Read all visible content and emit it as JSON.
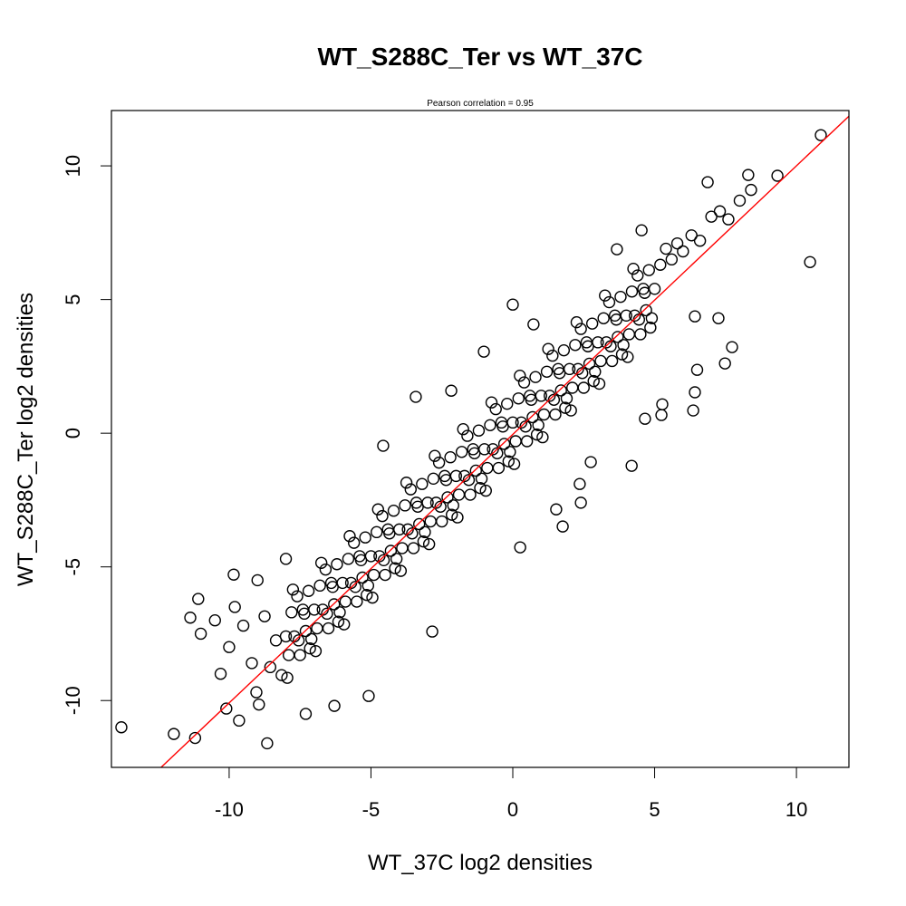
{
  "chart_data": {
    "type": "scatter",
    "title": "WT_S288C_Ter vs WT_37C",
    "subtitle": "Pearson correlation =  0.95",
    "xlabel": "WT_37C log2 densities",
    "ylabel": "WT_S288C_Ter log2 densities",
    "xlim": [
      -14.15,
      11.85
    ],
    "ylim": [
      -12.5,
      12.07
    ],
    "xticks": [
      -10,
      -5,
      0,
      5,
      10
    ],
    "yticks": [
      -10,
      -5,
      0,
      5,
      10
    ],
    "xtick_labels": [
      "-10",
      "-5",
      "0",
      "5",
      "10"
    ],
    "ytick_labels": [
      "-10",
      "-5",
      "0",
      "5",
      "10"
    ],
    "grid": false,
    "marker_color": "#000000",
    "fit_line": {
      "color": "#ff0000",
      "from": [
        -12.4,
        -12.5
      ],
      "to": [
        11.85,
        11.86
      ]
    },
    "points": [
      [
        -8,
        -7.6
      ],
      [
        -7.9,
        -8.3
      ],
      [
        -7.8,
        -6.7
      ],
      [
        -7.7,
        -7.6
      ],
      [
        -7.6,
        -6.1
      ],
      [
        -7.5,
        -8.3
      ],
      [
        -7.4,
        -6.6
      ],
      [
        -7.3,
        -7.4
      ],
      [
        -7.2,
        -5.9
      ],
      [
        -7.1,
        -7.7
      ],
      [
        -7,
        -6.6
      ],
      [
        -6.9,
        -7.3
      ],
      [
        -6.8,
        -5.7
      ],
      [
        -6.7,
        -6.6
      ],
      [
        -6.6,
        -5.1
      ],
      [
        -6.5,
        -7.3
      ],
      [
        -6.4,
        -5.6
      ],
      [
        -6.3,
        -6.4
      ],
      [
        -6.2,
        -4.9
      ],
      [
        -6.1,
        -6.7
      ],
      [
        -6,
        -5.6
      ],
      [
        -5.9,
        -6.3
      ],
      [
        -5.8,
        -4.7
      ],
      [
        -5.7,
        -5.6
      ],
      [
        -5.6,
        -4.1
      ],
      [
        -5.5,
        -6.3
      ],
      [
        -5.4,
        -4.6
      ],
      [
        -5.3,
        -5.4
      ],
      [
        -5.2,
        -3.9
      ],
      [
        -5.1,
        -5.7
      ],
      [
        -5,
        -4.6
      ],
      [
        -4.9,
        -5.3
      ],
      [
        -4.8,
        -3.7
      ],
      [
        -4.7,
        -4.6
      ],
      [
        -4.6,
        -3.1
      ],
      [
        -4.5,
        -5.3
      ],
      [
        -4.4,
        -3.6
      ],
      [
        -4.3,
        -4.4
      ],
      [
        -4.2,
        -2.9
      ],
      [
        -4.1,
        -4.7
      ],
      [
        -4,
        -3.6
      ],
      [
        -3.9,
        -4.3
      ],
      [
        -3.8,
        -2.7
      ],
      [
        -3.7,
        -3.6
      ],
      [
        -3.6,
        -2.1
      ],
      [
        -3.5,
        -4.3
      ],
      [
        -3.4,
        -2.6
      ],
      [
        -3.3,
        -3.4
      ],
      [
        -3.2,
        -1.9
      ],
      [
        -3.1,
        -3.7
      ],
      [
        -3,
        -2.6
      ],
      [
        -2.9,
        -3.3
      ],
      [
        -2.8,
        -1.7
      ],
      [
        -2.7,
        -2.6
      ],
      [
        -2.6,
        -1.1
      ],
      [
        -2.5,
        -3.3
      ],
      [
        -2.4,
        -1.6
      ],
      [
        -2.3,
        -2.4
      ],
      [
        -2.2,
        -0.9
      ],
      [
        -2.1,
        -2.7
      ],
      [
        -2,
        -1.6
      ],
      [
        -1.9,
        -2.3
      ],
      [
        -1.8,
        -0.7
      ],
      [
        -1.7,
        -1.6
      ],
      [
        -1.6,
        -0.1
      ],
      [
        -1.5,
        -2.3
      ],
      [
        -1.4,
        -0.6
      ],
      [
        -1.3,
        -1.4
      ],
      [
        -1.2,
        0.1
      ],
      [
        -1.1,
        -1.7
      ],
      [
        -1,
        -0.6
      ],
      [
        -0.9,
        -1.3
      ],
      [
        -0.8,
        0.3
      ],
      [
        -0.7,
        -0.6
      ],
      [
        -0.6,
        0.9
      ],
      [
        -0.5,
        -1.3
      ],
      [
        -0.4,
        0.4
      ],
      [
        -0.3,
        -0.4
      ],
      [
        -0.2,
        1.1
      ],
      [
        -0.1,
        -0.7
      ],
      [
        0,
        0.4
      ],
      [
        0.1,
        -0.3
      ],
      [
        0.2,
        1.3
      ],
      [
        0.3,
        0.4
      ],
      [
        0.4,
        1.9
      ],
      [
        0.5,
        -0.3
      ],
      [
        0.6,
        1.4
      ],
      [
        0.7,
        0.6
      ],
      [
        0.8,
        2.1
      ],
      [
        0.9,
        0.3
      ],
      [
        1,
        1.4
      ],
      [
        1.1,
        0.7
      ],
      [
        1.2,
        2.3
      ],
      [
        1.3,
        1.4
      ],
      [
        1.4,
        2.9
      ],
      [
        1.5,
        0.7
      ],
      [
        1.6,
        2.4
      ],
      [
        1.7,
        1.6
      ],
      [
        1.8,
        3.1
      ],
      [
        1.9,
        1.3
      ],
      [
        2,
        2.4
      ],
      [
        2.1,
        1.7
      ],
      [
        2.2,
        3.3
      ],
      [
        2.3,
        2.4
      ],
      [
        2.4,
        3.9
      ],
      [
        2.5,
        1.7
      ],
      [
        2.6,
        3.4
      ],
      [
        2.7,
        2.6
      ],
      [
        2.8,
        4.1
      ],
      [
        2.9,
        2.3
      ],
      [
        3,
        3.4
      ],
      [
        3.1,
        2.7
      ],
      [
        3.2,
        4.3
      ],
      [
        3.3,
        3.4
      ],
      [
        3.4,
        4.9
      ],
      [
        3.5,
        2.7
      ],
      [
        3.6,
        4.4
      ],
      [
        3.7,
        3.6
      ],
      [
        3.8,
        5.1
      ],
      [
        3.9,
        3.3
      ],
      [
        4,
        4.4
      ],
      [
        4.1,
        3.7
      ],
      [
        4.2,
        5.3
      ],
      [
        4.3,
        4.4
      ],
      [
        4.4,
        5.9
      ],
      [
        4.5,
        3.7
      ],
      [
        4.6,
        5.4
      ],
      [
        4.7,
        4.6
      ],
      [
        4.8,
        6.1
      ],
      [
        4.9,
        4.3
      ],
      [
        5,
        5.4
      ],
      [
        5.2,
        6.3
      ],
      [
        5.4,
        6.9
      ],
      [
        5.6,
        6.5
      ],
      [
        5.8,
        7.1
      ],
      [
        6,
        6.8
      ],
      [
        6.3,
        7.4
      ],
      [
        6.6,
        7.2
      ],
      [
        7,
        8.1
      ],
      [
        7.3,
        8.3
      ],
      [
        7.6,
        8.0
      ],
      [
        8,
        8.7
      ],
      [
        8.4,
        9.1
      ],
      [
        -8.95,
        -10.15
      ],
      [
        -8.75,
        -6.85
      ],
      [
        -8.55,
        -8.75
      ],
      [
        -8.35,
        -7.75
      ],
      [
        -8.15,
        -9.05
      ],
      [
        -7.95,
        -9.15
      ],
      [
        -7.75,
        -5.85
      ],
      [
        -7.55,
        -7.75
      ],
      [
        -7.35,
        -6.75
      ],
      [
        -7.15,
        -8.05
      ],
      [
        -6.95,
        -8.15
      ],
      [
        -6.75,
        -4.85
      ],
      [
        -6.55,
        -6.75
      ],
      [
        -6.35,
        -5.75
      ],
      [
        -6.15,
        -7.05
      ],
      [
        -5.95,
        -7.15
      ],
      [
        -5.75,
        -3.85
      ],
      [
        -5.55,
        -5.75
      ],
      [
        -5.35,
        -4.75
      ],
      [
        -5.15,
        -6.05
      ],
      [
        -4.95,
        -6.15
      ],
      [
        -4.75,
        -2.85
      ],
      [
        -4.55,
        -4.75
      ],
      [
        -4.35,
        -3.75
      ],
      [
        -4.15,
        -5.05
      ],
      [
        -3.95,
        -5.15
      ],
      [
        -3.75,
        -1.85
      ],
      [
        -3.55,
        -3.75
      ],
      [
        -3.35,
        -2.75
      ],
      [
        -3.15,
        -4.05
      ],
      [
        -2.95,
        -4.15
      ],
      [
        -2.75,
        -0.85
      ],
      [
        -2.55,
        -2.75
      ],
      [
        -2.35,
        -1.75
      ],
      [
        -2.15,
        -3.05
      ],
      [
        -1.95,
        -3.15
      ],
      [
        -1.75,
        0.15
      ],
      [
        -1.55,
        -1.75
      ],
      [
        -1.35,
        -0.75
      ],
      [
        -1.15,
        -2.05
      ],
      [
        -0.95,
        -2.15
      ],
      [
        -0.75,
        1.15
      ],
      [
        -0.55,
        -0.75
      ],
      [
        -0.35,
        0.25
      ],
      [
        -0.15,
        -1.05
      ],
      [
        0.05,
        -1.15
      ],
      [
        0.25,
        2.15
      ],
      [
        0.45,
        0.25
      ],
      [
        0.65,
        1.25
      ],
      [
        0.85,
        -0.05
      ],
      [
        1.05,
        -0.15
      ],
      [
        1.25,
        3.15
      ],
      [
        1.45,
        1.25
      ],
      [
        1.65,
        2.25
      ],
      [
        1.85,
        0.95
      ],
      [
        2.05,
        0.85
      ],
      [
        2.25,
        4.15
      ],
      [
        2.45,
        2.25
      ],
      [
        2.65,
        3.25
      ],
      [
        2.85,
        1.95
      ],
      [
        3.05,
        1.85
      ],
      [
        3.25,
        5.15
      ],
      [
        3.45,
        3.25
      ],
      [
        3.65,
        4.25
      ],
      [
        3.85,
        2.95
      ],
      [
        4.05,
        2.85
      ],
      [
        4.25,
        6.15
      ],
      [
        4.45,
        4.25
      ],
      [
        4.65,
        5.25
      ],
      [
        4.85,
        3.95
      ],
      [
        -10.5,
        -7.0
      ],
      [
        -10,
        -8
      ],
      [
        -9.5,
        -7.2
      ],
      [
        -9.8,
        -6.5
      ],
      [
        -9.2,
        -8.6
      ],
      [
        -10.3,
        -9.0
      ],
      [
        -11.0,
        -7.5
      ],
      [
        -9.0,
        -5.5
      ],
      [
        -13.8,
        -11.0
      ],
      [
        -11.95,
        -11.25
      ],
      [
        -11.2,
        -11.4
      ],
      [
        -8.66,
        -11.6
      ],
      [
        10.86,
        11.15
      ],
      [
        10.48,
        6.4
      ],
      [
        9.33,
        9.63
      ],
      [
        8.3,
        9.66
      ],
      [
        6.87,
        9.39
      ],
      [
        4.54,
        7.59
      ],
      [
        3.67,
        6.88
      ],
      [
        7.25,
        4.3
      ],
      [
        6.42,
        4.37
      ],
      [
        6.5,
        2.37
      ],
      [
        6.42,
        1.53
      ],
      [
        6.36,
        0.85
      ],
      [
        7.73,
        3.22
      ],
      [
        7.48,
        2.61
      ],
      [
        5.27,
        1.08
      ],
      [
        5.24,
        0.68
      ],
      [
        4.66,
        0.54
      ],
      [
        4.19,
        -1.22
      ],
      [
        2.36,
        -1.9
      ],
      [
        2.75,
        -1.08
      ],
      [
        2.4,
        -2.6
      ],
      [
        1.53,
        -2.85
      ],
      [
        0.26,
        -4.27
      ],
      [
        1.76,
        -3.49
      ],
      [
        -2.84,
        -7.42
      ],
      [
        -1.02,
        3.05
      ],
      [
        0,
        4.81
      ],
      [
        0.73,
        4.07
      ],
      [
        -3.42,
        1.36
      ],
      [
        -2.17,
        1.59
      ],
      [
        -4.57,
        -0.47
      ],
      [
        -5.08,
        -9.83
      ],
      [
        -6.29,
        -10.2
      ],
      [
        -9.04,
        -9.69
      ],
      [
        -9.84,
        -5.29
      ],
      [
        -11.09,
        -6.2
      ],
      [
        -11.37,
        -6.9
      ],
      [
        -10.1,
        -10.3
      ],
      [
        -9.65,
        -10.75
      ],
      [
        -7.3,
        -10.5
      ],
      [
        -8.0,
        -4.7
      ]
    ]
  }
}
